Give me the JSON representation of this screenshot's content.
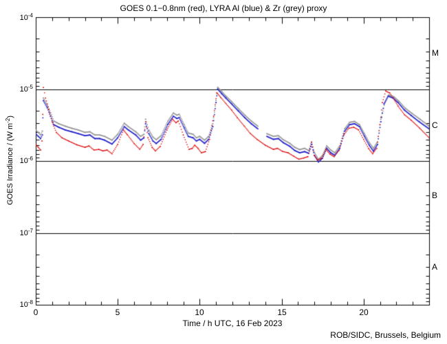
{
  "title": "GOES 0.1−0.8nm (red), LYRA Al (blue) & Zr (grey) proxy",
  "footer": "ROB/SIDC, Brussels, Belgium",
  "axes": {
    "x": {
      "label": "Time / h UTC, 16 Feb 2023",
      "ticks": [
        "0",
        "5",
        "10",
        "15",
        "20"
      ],
      "range": [
        0,
        24
      ],
      "minor_step_hours": 1
    },
    "y": {
      "label_pre": "GOES Irradiance / (W m",
      "label_sup": "-2",
      "label_post": ")",
      "ticks": [
        {
          "base": "10",
          "exp": "-4"
        },
        {
          "base": "10",
          "exp": "-5"
        },
        {
          "base": "10",
          "exp": "-6"
        },
        {
          "base": "10",
          "exp": "-7"
        },
        {
          "base": "10",
          "exp": "-8"
        }
      ],
      "scale": "log",
      "range": [
        1e-08,
        0.0001
      ]
    }
  },
  "flare_classes": [
    "M",
    "C",
    "B",
    "A"
  ],
  "colors": {
    "red": "#dd0000",
    "blue": "#2222cc",
    "grey": "#999999",
    "frame": "#000000",
    "background": "#ffffff"
  },
  "chart_data": {
    "type": "line",
    "title": "GOES 0.1-0.8nm (red), LYRA Al (blue) & Zr (grey) proxy",
    "xlabel": "Time / h UTC, 16 Feb 2023",
    "ylabel": "GOES Irradiance / (W m-2)",
    "xlim": [
      0,
      24
    ],
    "ylim": [
      1e-08,
      0.0001
    ],
    "yscale": "log",
    "grid": false,
    "hlines": [
      1e-05,
      1e-06,
      1e-07
    ],
    "class_bands": [
      {
        "label": "M",
        "from": 1e-05,
        "to": 0.0001
      },
      {
        "label": "C",
        "from": 1e-06,
        "to": 1e-05
      },
      {
        "label": "B",
        "from": 1e-07,
        "to": 1e-06
      },
      {
        "label": "A",
        "from": 1e-08,
        "to": 1e-07
      }
    ],
    "series": [
      {
        "name": "GOES 0.1-0.8nm",
        "color": "#dd0000",
        "points": [
          [
            0,
            1.7e-06
          ],
          [
            0.15,
            1.55e-06
          ],
          [
            0.3,
            1.42e-06
          ],
          [
            0.38,
            1.9e-06
          ],
          [
            0.47,
            1.05e-05
          ],
          [
            0.6,
            7.5e-06
          ],
          [
            0.8,
            5.2e-06
          ],
          [
            1.0,
            3.5e-06
          ],
          [
            1.25,
            2.5e-06
          ],
          [
            1.6,
            2.1e-06
          ],
          [
            2.0,
            1.9e-06
          ],
          [
            2.5,
            1.68e-06
          ],
          [
            3.0,
            1.55e-06
          ],
          [
            3.25,
            1.62e-06
          ],
          [
            3.55,
            1.42e-06
          ],
          [
            3.85,
            1.45e-06
          ],
          [
            4.1,
            1.38e-06
          ],
          [
            4.35,
            1.42e-06
          ],
          [
            4.65,
            1.26e-06
          ],
          [
            5.0,
            1.7e-06
          ],
          [
            5.35,
            2.7e-06
          ],
          [
            5.6,
            2.3e-06
          ],
          [
            6.0,
            1.75e-06
          ],
          [
            6.35,
            1.45e-06
          ],
          [
            6.55,
            1.7e-06
          ],
          [
            6.7,
            3.5e-06
          ],
          [
            6.85,
            2.1e-06
          ],
          [
            7.1,
            1.55e-06
          ],
          [
            7.3,
            1.38e-06
          ],
          [
            7.6,
            1.6e-06
          ],
          [
            8.0,
            2.7e-06
          ],
          [
            8.35,
            3.8e-06
          ],
          [
            8.55,
            3.4e-06
          ],
          [
            8.7,
            3.6e-06
          ],
          [
            9.0,
            2.3e-06
          ],
          [
            9.35,
            1.45e-06
          ],
          [
            9.55,
            1.5e-06
          ],
          [
            9.7,
            1.66e-06
          ],
          [
            9.9,
            1.5e-06
          ],
          [
            10.1,
            1.3e-06
          ],
          [
            10.35,
            1.35e-06
          ],
          [
            10.6,
            2e-06
          ],
          [
            10.85,
            4.2e-06
          ],
          [
            11.05,
            8.9e-06
          ],
          [
            11.3,
            7.6e-06
          ],
          [
            11.6,
            6.3e-06
          ],
          [
            11.95,
            5.1e-06
          ],
          [
            12.3,
            4e-06
          ],
          [
            12.7,
            3.1e-06
          ],
          [
            13.1,
            2.4e-06
          ],
          [
            13.5,
            2e-06
          ],
          [
            14.0,
            1.66e-06
          ],
          [
            14.5,
            1.45e-06
          ],
          [
            14.75,
            1.5e-06
          ],
          [
            15.05,
            1.36e-06
          ],
          [
            15.4,
            1.3e-06
          ],
          [
            15.75,
            1.16e-06
          ],
          [
            16.05,
            1.06e-06
          ],
          [
            16.35,
            1.1e-06
          ],
          [
            16.6,
            1.15e-06
          ],
          [
            16.83,
            1.8e-06
          ],
          [
            17.0,
            1.2e-06
          ],
          [
            17.2,
            1.03e-06
          ],
          [
            17.45,
            1.1e-06
          ],
          [
            17.7,
            1.45e-06
          ],
          [
            17.95,
            1.25e-06
          ],
          [
            18.2,
            1.15e-06
          ],
          [
            18.5,
            1.4e-06
          ],
          [
            18.8,
            2.3e-06
          ],
          [
            19.1,
            2.85e-06
          ],
          [
            19.4,
            2.95e-06
          ],
          [
            19.7,
            2.7e-06
          ],
          [
            20.0,
            2e-06
          ],
          [
            20.3,
            1.5e-06
          ],
          [
            20.55,
            1.26e-06
          ],
          [
            20.8,
            1.5e-06
          ],
          [
            21.0,
            3.2e-06
          ],
          [
            21.15,
            6.5e-06
          ],
          [
            21.35,
            9.4e-06
          ],
          [
            21.6,
            8.8e-06
          ],
          [
            21.9,
            7e-06
          ],
          [
            22.1,
            5.8e-06
          ],
          [
            22.5,
            4.4e-06
          ],
          [
            22.9,
            3.7e-06
          ],
          [
            23.4,
            2.9e-06
          ],
          [
            24,
            2.1e-06
          ]
        ]
      },
      {
        "name": "LYRA Al proxy",
        "color": "#2222cc",
        "points": [
          [
            0,
            2.4e-06
          ],
          [
            0.15,
            2.2e-06
          ],
          [
            0.3,
            2.05e-06
          ],
          [
            0.4,
            2.3e-06
          ],
          [
            0.47,
            6.9e-06
          ],
          [
            0.7,
            5.5e-06
          ],
          [
            0.9,
            4.2e-06
          ],
          [
            1.1,
            3.2e-06
          ],
          [
            1.4,
            2.95e-06
          ],
          [
            1.8,
            2.7e-06
          ],
          [
            2.2,
            2.55e-06
          ],
          [
            2.6,
            2.4e-06
          ],
          [
            3.0,
            2.25e-06
          ],
          [
            3.3,
            2.3e-06
          ],
          [
            3.6,
            2.05e-06
          ],
          [
            3.9,
            2.05e-06
          ],
          [
            4.2,
            1.95e-06
          ],
          [
            4.65,
            1.72e-06
          ],
          [
            5.0,
            2.1e-06
          ],
          [
            5.4,
            3e-06
          ],
          [
            5.65,
            2.7e-06
          ],
          [
            6.1,
            2.3e-06
          ],
          [
            6.4,
            1.95e-06
          ],
          [
            6.6,
            2.1e-06
          ],
          [
            6.7,
            3.3e-06
          ],
          [
            6.9,
            2.4e-06
          ],
          [
            7.15,
            1.9e-06
          ],
          [
            7.35,
            1.75e-06
          ],
          [
            7.65,
            2e-06
          ],
          [
            8.05,
            3.2e-06
          ],
          [
            8.4,
            4.2e-06
          ],
          [
            8.6,
            3.9e-06
          ],
          [
            8.75,
            4e-06
          ],
          [
            9.05,
            2.9e-06
          ],
          [
            9.3,
            2.2e-06
          ],
          [
            9.6,
            2.1e-06
          ],
          [
            9.8,
            1.9e-06
          ],
          [
            10.0,
            2e-06
          ],
          [
            10.3,
            1.76e-06
          ],
          [
            10.55,
            2e-06
          ],
          [
            10.8,
            3e-06
          ],
          [
            11.0,
            6.5e-06
          ],
          [
            11.1,
            1e-05
          ],
          [
            11.35,
            8.6e-06
          ],
          [
            11.6,
            7.5e-06
          ],
          [
            11.95,
            6.2e-06
          ],
          [
            12.35,
            5e-06
          ],
          [
            12.75,
            4e-06
          ],
          [
            13.15,
            3.3e-06
          ],
          [
            13.55,
            2.8e-06
          ],
          [
            13.75,
            null
          ],
          [
            14.1,
            2.2e-06
          ],
          [
            14.5,
            2e-06
          ],
          [
            14.8,
            2.05e-06
          ],
          [
            15.1,
            1.8e-06
          ],
          [
            15.5,
            1.6e-06
          ],
          [
            15.8,
            1.4e-06
          ],
          [
            16.1,
            1.3e-06
          ],
          [
            16.4,
            1.35e-06
          ],
          [
            16.65,
            1.28e-06
          ],
          [
            16.83,
            1.7e-06
          ],
          [
            17.0,
            1.2e-06
          ],
          [
            17.25,
            9.7e-07
          ],
          [
            17.5,
            1.1e-06
          ],
          [
            17.75,
            1.5e-06
          ],
          [
            18.0,
            1.3e-06
          ],
          [
            18.25,
            1.2e-06
          ],
          [
            18.55,
            1.5e-06
          ],
          [
            18.85,
            2.6e-06
          ],
          [
            19.15,
            3.2e-06
          ],
          [
            19.45,
            3.3e-06
          ],
          [
            19.75,
            3e-06
          ],
          [
            20.05,
            2.2e-06
          ],
          [
            20.35,
            1.65e-06
          ],
          [
            20.6,
            1.37e-06
          ],
          [
            20.85,
            1.7e-06
          ],
          [
            21.05,
            3.5e-06
          ],
          [
            21.25,
            6.2e-06
          ],
          [
            21.5,
            8e-06
          ],
          [
            21.8,
            7.5e-06
          ],
          [
            22.1,
            6.5e-06
          ],
          [
            22.5,
            5.1e-06
          ],
          [
            22.9,
            4.3e-06
          ],
          [
            23.4,
            3.5e-06
          ],
          [
            24,
            2.8e-06
          ]
        ]
      },
      {
        "name": "LYRA Zr proxy",
        "color": "#999999",
        "points": [
          [
            0,
            2.7e-06
          ],
          [
            0.15,
            2.5e-06
          ],
          [
            0.3,
            2.3e-06
          ],
          [
            0.4,
            2.6e-06
          ],
          [
            0.47,
            7.5e-06
          ],
          [
            0.7,
            6e-06
          ],
          [
            0.9,
            4.7e-06
          ],
          [
            1.1,
            3.6e-06
          ],
          [
            1.4,
            3.3e-06
          ],
          [
            1.8,
            3.05e-06
          ],
          [
            2.2,
            2.85e-06
          ],
          [
            2.6,
            2.7e-06
          ],
          [
            3.0,
            2.5e-06
          ],
          [
            3.3,
            2.55e-06
          ],
          [
            3.6,
            2.3e-06
          ],
          [
            3.9,
            2.3e-06
          ],
          [
            4.2,
            2.2e-06
          ],
          [
            4.65,
            1.95e-06
          ],
          [
            5.0,
            2.35e-06
          ],
          [
            5.4,
            3.35e-06
          ],
          [
            5.65,
            3e-06
          ],
          [
            6.1,
            2.55e-06
          ],
          [
            6.4,
            2.2e-06
          ],
          [
            6.6,
            2.35e-06
          ],
          [
            6.7,
            3.8e-06
          ],
          [
            6.9,
            2.7e-06
          ],
          [
            7.15,
            2.15e-06
          ],
          [
            7.35,
            1.98e-06
          ],
          [
            7.65,
            2.25e-06
          ],
          [
            8.05,
            3.55e-06
          ],
          [
            8.4,
            4.65e-06
          ],
          [
            8.6,
            4.35e-06
          ],
          [
            8.75,
            4.45e-06
          ],
          [
            9.05,
            3.2e-06
          ],
          [
            9.3,
            2.45e-06
          ],
          [
            9.6,
            2.35e-06
          ],
          [
            9.8,
            2.1e-06
          ],
          [
            10.0,
            2.2e-06
          ],
          [
            10.3,
            1.95e-06
          ],
          [
            10.55,
            2.2e-06
          ],
          [
            10.8,
            3.3e-06
          ],
          [
            11.0,
            7e-06
          ],
          [
            11.1,
            1.06e-05
          ],
          [
            11.35,
            9.2e-06
          ],
          [
            11.6,
            8e-06
          ],
          [
            11.95,
            6.7e-06
          ],
          [
            12.35,
            5.4e-06
          ],
          [
            12.75,
            4.35e-06
          ],
          [
            13.15,
            3.6e-06
          ],
          [
            13.55,
            3.05e-06
          ],
          [
            13.75,
            null
          ],
          [
            14.1,
            2.4e-06
          ],
          [
            14.5,
            2.2e-06
          ],
          [
            14.8,
            2.25e-06
          ],
          [
            15.1,
            1.98e-06
          ],
          [
            15.5,
            1.76e-06
          ],
          [
            15.8,
            1.55e-06
          ],
          [
            16.1,
            1.44e-06
          ],
          [
            16.4,
            1.5e-06
          ],
          [
            16.65,
            1.4e-06
          ],
          [
            16.83,
            1.85e-06
          ],
          [
            17.0,
            1.32e-06
          ],
          [
            17.25,
            1.05e-06
          ],
          [
            17.5,
            1.2e-06
          ],
          [
            17.75,
            1.63e-06
          ],
          [
            18.0,
            1.42e-06
          ],
          [
            18.25,
            1.3e-06
          ],
          [
            18.55,
            1.63e-06
          ],
          [
            18.85,
            2.8e-06
          ],
          [
            19.15,
            3.45e-06
          ],
          [
            19.45,
            3.55e-06
          ],
          [
            19.75,
            3.2e-06
          ],
          [
            20.05,
            2.4e-06
          ],
          [
            20.35,
            1.8e-06
          ],
          [
            20.6,
            1.5e-06
          ],
          [
            20.85,
            1.85e-06
          ],
          [
            21.05,
            3.8e-06
          ],
          [
            21.3,
            6.5e-06
          ],
          [
            21.55,
            8.3e-06
          ],
          [
            21.85,
            7.8e-06
          ],
          [
            22.15,
            6.8e-06
          ],
          [
            22.55,
            5.4e-06
          ],
          [
            22.95,
            4.6e-06
          ],
          [
            23.45,
            3.8e-06
          ],
          [
            24,
            3.05e-06
          ]
        ]
      }
    ]
  }
}
